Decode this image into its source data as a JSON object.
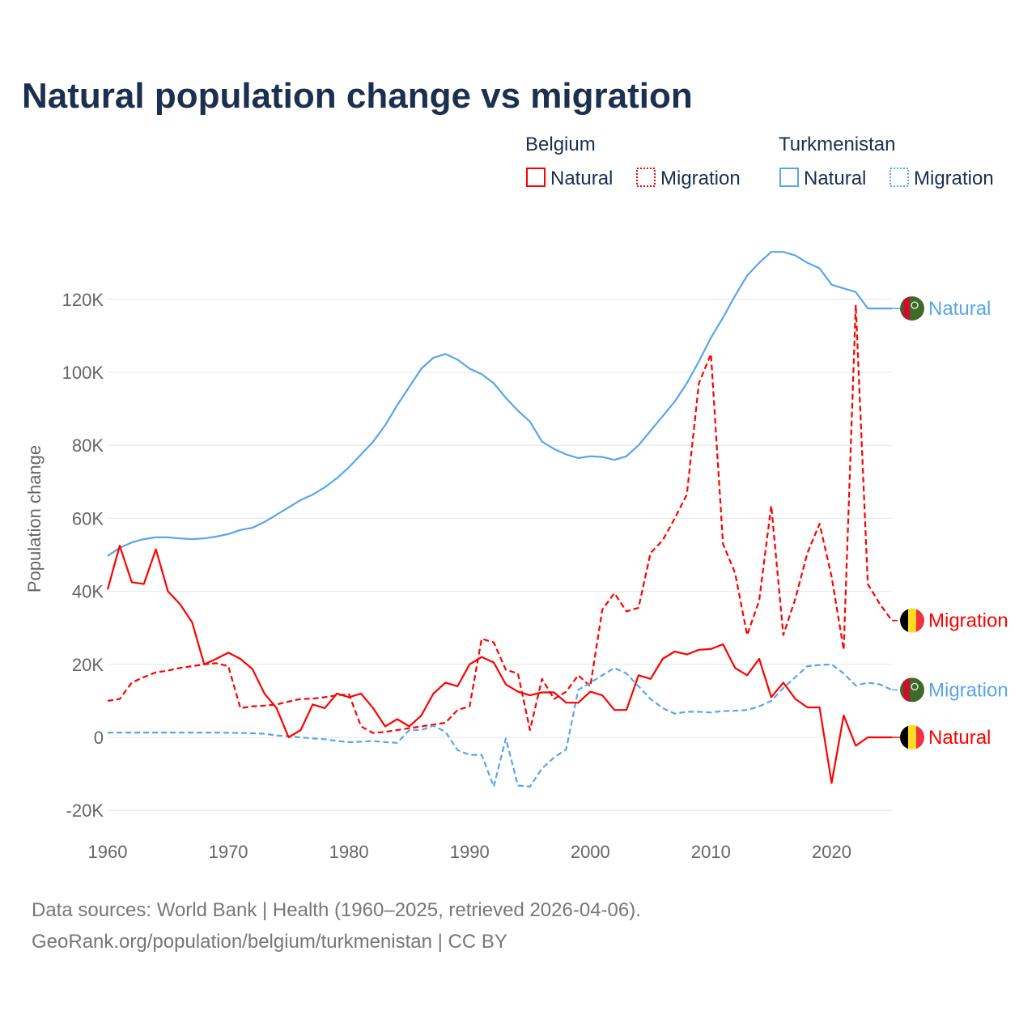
{
  "title": "Natural population change vs migration",
  "legend": {
    "groups": [
      {
        "name": "Belgium",
        "items": [
          "Natural",
          "Migration"
        ]
      },
      {
        "name": "Turkmenistan",
        "items": [
          "Natural",
          "Migration"
        ]
      }
    ]
  },
  "source_lines": [
    "Data sources: World Bank | Health (1960–2025, retrieved 2026-04-06).",
    "GeoRank.org/population/belgium/turkmenistan | CC BY"
  ],
  "colors": {
    "belgium": "#ff0000",
    "turkmenistan": "#5aa5ea",
    "grid": "#e6e6e6"
  },
  "chart_data": {
    "type": "line",
    "title": "Natural population change vs migration",
    "xlabel": "",
    "ylabel": "Population change",
    "xlim": [
      1960,
      2025
    ],
    "ylim": [
      -20000,
      130000
    ],
    "x_ticks": [
      1960,
      1970,
      1980,
      1990,
      2000,
      2010,
      2020
    ],
    "x_tick_labels": [
      "1960",
      "1970",
      "1980",
      "1990",
      "2000",
      "2010",
      "2020"
    ],
    "y_ticks": [
      -20000,
      0,
      20000,
      40000,
      60000,
      80000,
      100000,
      120000
    ],
    "y_tick_labels": [
      "-20K",
      "0",
      "20K",
      "40K",
      "60K",
      "80K",
      "100K",
      "120K"
    ],
    "grid": true,
    "legend_position": "top-right",
    "x_start": 1960,
    "series": [
      {
        "name": "Turkmenistan Natural",
        "country": "Turkmenistan",
        "kind": "Natural",
        "label": "Natural",
        "style": "solid",
        "color": "#5aa5ea",
        "values": [
          49700,
          51900,
          53400,
          54300,
          54800,
          54800,
          54500,
          54300,
          54500,
          55000,
          55700,
          56800,
          57400,
          59000,
          61000,
          63000,
          65000,
          66500,
          68500,
          71000,
          74000,
          77500,
          81000,
          85500,
          91000,
          96000,
          101000,
          104000,
          105000,
          103500,
          101000,
          99500,
          97000,
          93000,
          89500,
          86500,
          81000,
          79000,
          77500,
          76500,
          77000,
          76800,
          76000,
          77000,
          80000,
          84000,
          88000,
          92000,
          97000,
          103000,
          109500,
          115000,
          121000,
          126500,
          130000,
          133000,
          133000,
          132000,
          130000,
          128500,
          124000,
          123000,
          122000,
          117500,
          117500,
          117500
        ]
      },
      {
        "name": "Belgium Migration",
        "country": "Belgium",
        "kind": "Migration",
        "label": "Migration",
        "style": "dashed",
        "color": "#ff0000",
        "values": [
          10000,
          10500,
          15000,
          16500,
          17800,
          18300,
          19000,
          19500,
          20000,
          20300,
          19500,
          8000,
          8500,
          8700,
          9000,
          9800,
          10500,
          10600,
          11000,
          11500,
          11800,
          3000,
          1200,
          1500,
          2000,
          2500,
          3000,
          3500,
          4000,
          7500,
          8500,
          27000,
          26000,
          18500,
          17500,
          2000,
          16000,
          10500,
          12500,
          17000,
          14000,
          35000,
          39500,
          34500,
          35500,
          50500,
          54000,
          60000,
          66500,
          97000,
          105000,
          53000,
          45000,
          28000,
          37500,
          63500,
          28000,
          38000,
          50500,
          58500,
          44000,
          24000,
          118500,
          42000,
          36500,
          32000
        ]
      },
      {
        "name": "Turkmenistan Migration",
        "country": "Turkmenistan",
        "kind": "Migration",
        "label": "Migration",
        "style": "dashed",
        "color": "#5aa5ea",
        "values": [
          1300,
          1300,
          1300,
          1300,
          1300,
          1300,
          1300,
          1300,
          1300,
          1300,
          1250,
          1200,
          1100,
          1000,
          500,
          300,
          0,
          -300,
          -500,
          -1000,
          -1300,
          -1200,
          -1000,
          -1300,
          -1500,
          2000,
          2000,
          3200,
          1500,
          -3500,
          -4800,
          -4800,
          -13500,
          -300,
          -13200,
          -13500,
          -8500,
          -5500,
          -3300,
          13000,
          15000,
          17000,
          19000,
          17500,
          14000,
          10500,
          8000,
          6500,
          7000,
          7000,
          6800,
          7200,
          7300,
          7500,
          8500,
          10000,
          13500,
          16500,
          19500,
          19800,
          20000,
          17500,
          14200,
          15000,
          14500,
          13000
        ]
      },
      {
        "name": "Belgium Natural",
        "country": "Belgium",
        "kind": "Natural",
        "label": "Natural",
        "style": "solid",
        "color": "#ff0000",
        "values": [
          40500,
          52500,
          42500,
          42000,
          51500,
          40000,
          36500,
          31500,
          20000,
          21500,
          23200,
          21500,
          18700,
          12000,
          8000,
          0,
          2000,
          9000,
          8000,
          12000,
          11000,
          12000,
          8000,
          3000,
          5000,
          3000,
          6000,
          12000,
          15000,
          14000,
          20000,
          22000,
          20500,
          14500,
          12500,
          11500,
          12300,
          12300,
          9500,
          9500,
          12500,
          11500,
          7500,
          7500,
          17000,
          16000,
          21500,
          23500,
          22700,
          24000,
          24200,
          25500,
          19000,
          17000,
          21500,
          11000,
          15000,
          10500,
          8200,
          8200,
          -12500,
          6000,
          -2300,
          0,
          0,
          0
        ]
      }
    ]
  }
}
